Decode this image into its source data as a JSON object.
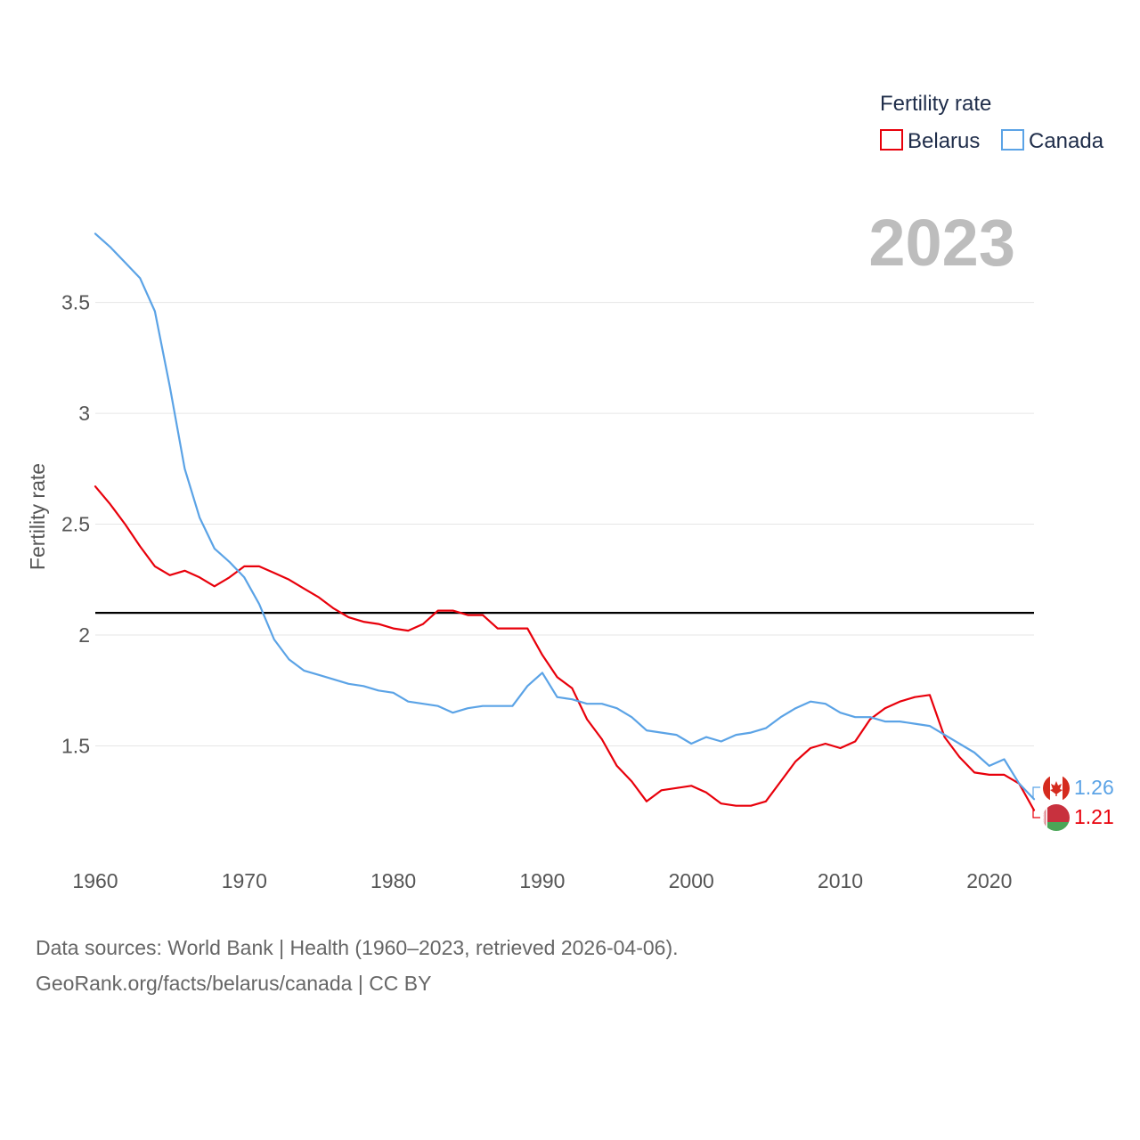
{
  "chart_data": {
    "type": "line",
    "ylabel": "Fertility rate",
    "xlabel": "",
    "legend_title": "Fertility rate",
    "legend_position": "top-right",
    "year_label": "2023",
    "xlim": [
      1960,
      2023
    ],
    "ylim": [
      1.0,
      3.9
    ],
    "x_ticks": [
      1960,
      1970,
      1980,
      1990,
      2000,
      2010,
      2020
    ],
    "x_tick_labels": [
      "1960",
      "1970",
      "1980",
      "1990",
      "2000",
      "2010",
      "2020"
    ],
    "y_ticks": [
      1.5,
      2,
      2.5,
      3,
      3.5
    ],
    "y_tick_labels": [
      "1.5",
      "2",
      "2.5",
      "3",
      "3.5"
    ],
    "reference_line": 2.1,
    "grid": true,
    "series": [
      {
        "name": "Belarus",
        "color": "#e8000b",
        "end_label": "1.21",
        "flag": "belarus-flag",
        "x_start": 1960,
        "values": [
          2.67,
          2.59,
          2.5,
          2.4,
          2.31,
          2.27,
          2.29,
          2.26,
          2.22,
          2.26,
          2.31,
          2.31,
          2.28,
          2.25,
          2.21,
          2.17,
          2.12,
          2.08,
          2.06,
          2.05,
          2.03,
          2.02,
          2.05,
          2.11,
          2.11,
          2.09,
          2.09,
          2.03,
          2.03,
          2.03,
          1.91,
          1.81,
          1.76,
          1.62,
          1.53,
          1.41,
          1.34,
          1.25,
          1.3,
          1.31,
          1.32,
          1.29,
          1.24,
          1.23,
          1.23,
          1.25,
          1.34,
          1.43,
          1.49,
          1.51,
          1.49,
          1.52,
          1.62,
          1.67,
          1.7,
          1.72,
          1.73,
          1.54,
          1.45,
          1.38,
          1.37,
          1.37,
          1.33,
          1.21
        ]
      },
      {
        "name": "Canada",
        "color": "#5ba3e6",
        "end_label": "1.26",
        "flag": "canada-flag",
        "x_start": 1960,
        "values": [
          3.81,
          3.75,
          3.68,
          3.61,
          3.46,
          3.12,
          2.75,
          2.53,
          2.39,
          2.33,
          2.26,
          2.14,
          1.98,
          1.89,
          1.84,
          1.82,
          1.8,
          1.78,
          1.77,
          1.75,
          1.74,
          1.7,
          1.69,
          1.68,
          1.65,
          1.67,
          1.68,
          1.68,
          1.68,
          1.77,
          1.83,
          1.72,
          1.71,
          1.69,
          1.69,
          1.67,
          1.63,
          1.57,
          1.56,
          1.55,
          1.51,
          1.54,
          1.52,
          1.55,
          1.56,
          1.58,
          1.63,
          1.67,
          1.7,
          1.69,
          1.65,
          1.63,
          1.63,
          1.61,
          1.61,
          1.6,
          1.59,
          1.55,
          1.51,
          1.47,
          1.41,
          1.44,
          1.33,
          1.26
        ]
      }
    ]
  },
  "footer": {
    "line1": "Data sources: World Bank | Health (1960–2023, retrieved 2026-04-06).",
    "line2": "GeoRank.org/facts/belarus/canada | CC BY"
  }
}
